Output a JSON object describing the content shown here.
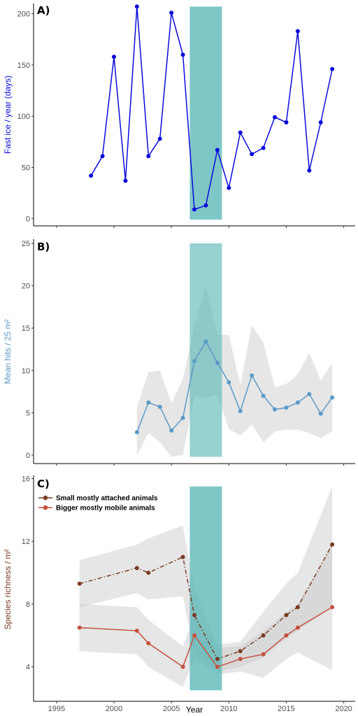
{
  "colors": {
    "shade": "#5fb9b9",
    "ribbon": "#c8c8c8",
    "panelA": "#0a0adc",
    "panelB": "#5a9ac8",
    "small": "#7a3b22",
    "bigger": "#c4513d"
  },
  "x_label": "Year",
  "chart_data": [
    {
      "type": "line",
      "panel_label": "A)",
      "ylabel": "Fast ice / year (days)",
      "xlim": [
        1993,
        2021
      ],
      "ylim": [
        -7,
        210
      ],
      "yticks": [
        0,
        50,
        100,
        150,
        200
      ],
      "xticks": [
        1995,
        2000,
        2005,
        2010,
        2015,
        2020
      ],
      "shaded_region": [
        2006.6,
        2009.4
      ],
      "shaded_ylim": [
        -1,
        207
      ],
      "series": [
        {
          "x": [
            1998,
            1999,
            2000,
            2001,
            2002,
            2003,
            2004,
            2005,
            2006,
            2007,
            2008,
            2009,
            2010,
            2011,
            2012,
            2013,
            2014,
            2015,
            2016,
            2017,
            2018,
            2019
          ],
          "y": [
            42,
            61,
            158,
            37,
            207,
            61,
            78,
            201,
            160,
            9,
            13,
            67,
            30,
            84,
            63,
            69,
            99,
            94,
            183,
            47,
            94,
            146
          ]
        }
      ]
    },
    {
      "type": "line",
      "panel_label": "B)",
      "ylabel": "Mean hits / 25 m²",
      "xlim": [
        1993,
        2021
      ],
      "ylim": [
        -1,
        25.5
      ],
      "yticks": [
        0,
        5,
        10,
        15,
        20,
        25
      ],
      "xticks": [
        1995,
        2000,
        2005,
        2010,
        2015,
        2020
      ],
      "shaded_region": [
        2006.6,
        2009.4
      ],
      "shaded_ylim": [
        -0.2,
        25
      ],
      "series": [
        {
          "x": [
            2002,
            2003,
            2004,
            2005,
            2006,
            2007,
            2008,
            2009,
            2010,
            2011,
            2012,
            2013,
            2014,
            2015,
            2016,
            2017,
            2018,
            2019
          ],
          "y": [
            2.7,
            6.2,
            5.7,
            2.9,
            4.4,
            11.1,
            13.4,
            10.9,
            8.6,
            5.2,
            9.4,
            7.0,
            5.4,
            5.6,
            6.2,
            7.2,
            4.9,
            6.8
          ],
          "lower": [
            0.0,
            2.6,
            1.5,
            -0.2,
            0.0,
            7.0,
            6.8,
            7.2,
            3.1,
            2.3,
            3.6,
            1.5,
            2.8,
            3.0,
            3.0,
            2.6,
            2.0,
            2.8
          ],
          "upper": [
            5.7,
            9.8,
            10.0,
            6.1,
            9.0,
            15.3,
            20.0,
            14.2,
            14.2,
            8.3,
            15.3,
            13.3,
            8.0,
            8.4,
            9.5,
            12.1,
            8.8,
            10.9
          ]
        }
      ]
    },
    {
      "type": "line",
      "panel_label": "C)",
      "ylabel": "Species richness / m²",
      "xlim": [
        1993,
        2021
      ],
      "ylim": [
        1.8,
        16.2
      ],
      "yticks": [
        4,
        8,
        12,
        16
      ],
      "xticks": [
        1995,
        2000,
        2005,
        2010,
        2015,
        2020
      ],
      "shaded_region": [
        2006.6,
        2009.4
      ],
      "shaded_ylim": [
        2.5,
        15.5
      ],
      "legend": "top-left",
      "series": [
        {
          "name": "Small mostly attached animals",
          "x": [
            1997,
            2002,
            2003,
            2006,
            2007,
            2009,
            2011,
            2013,
            2015,
            2016,
            2019
          ],
          "y": [
            9.3,
            10.3,
            10.0,
            11.0,
            7.3,
            4.5,
            5.0,
            6.0,
            7.3,
            7.8,
            11.8
          ],
          "lower": [
            7.8,
            8.7,
            8.3,
            8.5,
            4.8,
            3.7,
            4.0,
            4.6,
            5.8,
            6.3,
            7.8
          ],
          "upper": [
            10.8,
            11.8,
            12.2,
            13.0,
            9.0,
            5.4,
            5.6,
            7.5,
            9.3,
            10.0,
            15.5
          ]
        },
        {
          "name": "Bigger mostly mobile animals",
          "x": [
            1997,
            2002,
            2003,
            2006,
            2007,
            2009,
            2011,
            2013,
            2015,
            2016,
            2019
          ],
          "y": [
            6.5,
            6.3,
            5.5,
            4.0,
            6.0,
            4.0,
            4.5,
            4.8,
            6.0,
            6.5,
            7.8
          ],
          "lower": [
            5.0,
            4.8,
            4.0,
            2.7,
            4.5,
            3.5,
            3.7,
            3.3,
            4.5,
            4.9,
            3.8
          ],
          "upper": [
            8.0,
            7.8,
            7.0,
            5.3,
            7.3,
            5.2,
            5.3,
            6.3,
            7.5,
            8.0,
            11.8
          ]
        }
      ]
    }
  ]
}
